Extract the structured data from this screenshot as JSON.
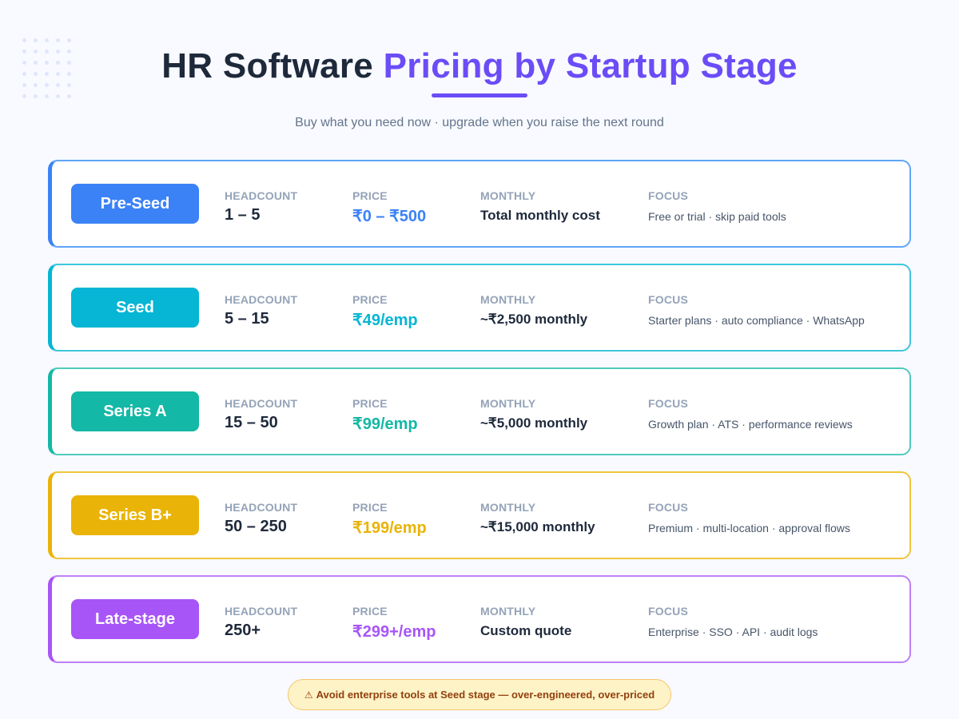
{
  "header": {
    "title_plain": "HR Software ",
    "title_accent": "Pricing by Startup Stage",
    "subtitle": "Buy what you need now · upgrade when you raise the next round"
  },
  "columns": {
    "headcount": "HEADCOUNT",
    "price": "PRICE",
    "monthly": "MONTHLY",
    "focus": "FOCUS"
  },
  "stages": [
    {
      "name": "Pre-Seed",
      "color": "#3b82f6",
      "border": "#60a5fa",
      "headcount": "1 – 5",
      "price": "₹0 – ₹500",
      "monthly": "Total monthly cost",
      "focus": "Free or trial · skip paid tools"
    },
    {
      "name": "Seed",
      "color": "#06b6d4",
      "border": "#3ec6dd",
      "headcount": "5 – 15",
      "price": "₹49/emp",
      "monthly": "~₹2,500 monthly",
      "focus": "Starter plans · auto compliance · WhatsApp"
    },
    {
      "name": "Series A",
      "color": "#14b8a6",
      "border": "#4fcabd",
      "headcount": "15 – 50",
      "price": "₹99/emp",
      "monthly": "~₹5,000 monthly",
      "focus": "Growth plan · ATS · performance reviews"
    },
    {
      "name": "Series B+",
      "color": "#eab308",
      "border": "#f0c53c",
      "headcount": "50 – 250",
      "price": "₹199/emp",
      "monthly": "~₹15,000 monthly",
      "focus": "Premium · multi-location · approval flows"
    },
    {
      "name": "Late-stage",
      "color": "#a855f7",
      "border": "#bf7ff8",
      "headcount": "250+",
      "price": "₹299+/emp",
      "monthly": "Custom quote",
      "focus": "Enterprise · SSO · API · audit logs"
    }
  ],
  "warning": {
    "icon": "⚠",
    "text": "Avoid enterprise tools at Seed stage — over-engineered, over-priced"
  },
  "colors": {
    "accent": "#6b4cf6",
    "text_dark": "#1e293b",
    "label_gray": "#94a3b8",
    "warning_bg": "#fef3c7",
    "warning_text": "#92400e"
  }
}
